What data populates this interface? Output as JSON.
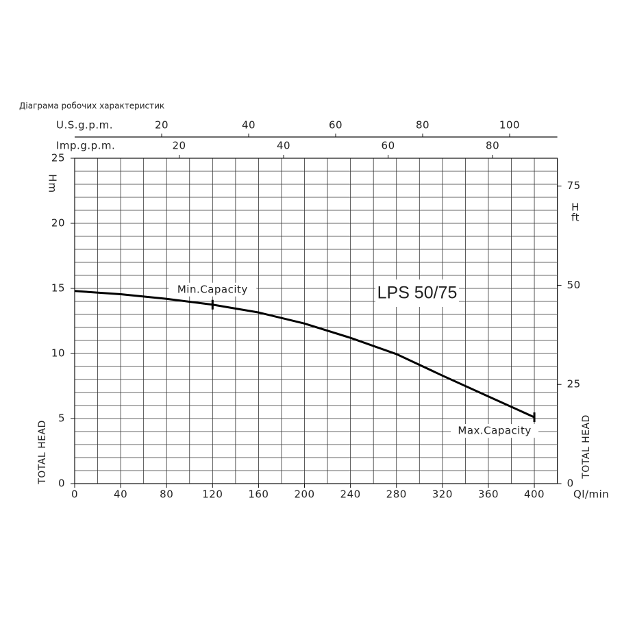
{
  "chart_data": {
    "type": "line",
    "title": "Діаграма робочих характеристик",
    "x": [
      0,
      40,
      80,
      120,
      160,
      200,
      240,
      280,
      320,
      360,
      400
    ],
    "series": [
      {
        "name": "LPS 50/75",
        "color": "#000000",
        "values": [
          14.8,
          14.55,
          14.2,
          13.75,
          13.15,
          12.3,
          11.2,
          9.95,
          8.3,
          6.7,
          5.1
        ]
      }
    ],
    "xlim": [
      0,
      420
    ],
    "xticks": [
      0,
      40,
      80,
      120,
      160,
      200,
      240,
      280,
      320,
      360,
      400
    ],
    "ylim": [
      0,
      25
    ],
    "yticks": [
      0,
      5,
      10,
      15,
      20,
      25
    ],
    "y2lim": [
      0,
      82.02
    ],
    "y2ticks": [
      0,
      25,
      50,
      75
    ],
    "x_label": "Ql/min",
    "y_label": "H",
    "y_unit": "m",
    "y_axis_title": "TOTAL HEAD",
    "y2_label": "H",
    "y2_unit": "ft",
    "y2_axis_title": "TOTAL HEAD",
    "top_axes": [
      {
        "label": "U.S.g.p.m.",
        "lim": [
          0,
          110.96
        ],
        "ticks": [
          20,
          40,
          60,
          80,
          100
        ]
      },
      {
        "label": "Imp.g.p.m.",
        "lim": [
          0,
          92.39
        ],
        "ticks": [
          20,
          40,
          60,
          80
        ]
      }
    ],
    "annotations": [
      {
        "text": "Min.Capacity",
        "x": 120,
        "y": 13.75
      },
      {
        "text": "Max.Capacity",
        "x": 400,
        "y": 5.1
      }
    ],
    "grid": true,
    "minor_grid": {
      "x": 20,
      "y": 1
    }
  }
}
